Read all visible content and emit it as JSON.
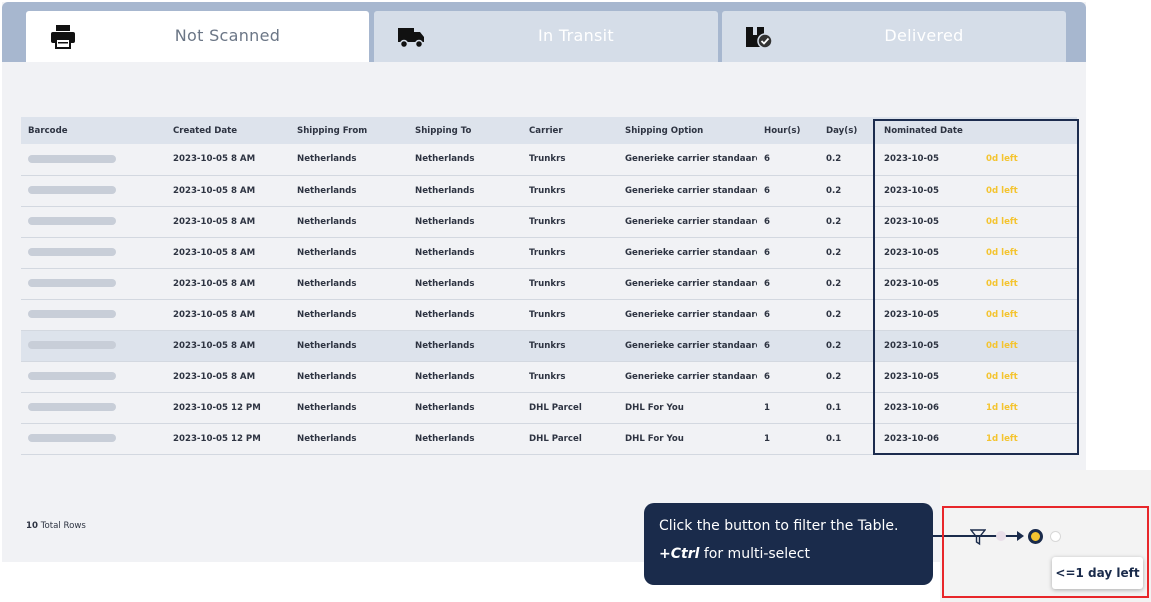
{
  "tabs": [
    {
      "label": "Not Scanned",
      "icon": "printer-icon",
      "active": true
    },
    {
      "label": "In Transit",
      "icon": "truck-icon",
      "active": false
    },
    {
      "label": "Delivered",
      "icon": "package-check-icon",
      "active": false
    }
  ],
  "table": {
    "columns": [
      "Barcode",
      "Created Date",
      "Shipping From",
      "Shipping To",
      "Carrier",
      "Shipping Option",
      "Hour(s)",
      "Day(s)",
      "Nominated Date"
    ],
    "rows": [
      {
        "created": "2023-10-05 8 AM",
        "from": "Netherlands",
        "to": "Netherlands",
        "carrier": "Trunkrs",
        "option": "Generieke carrier standaard",
        "hours": "6",
        "days": "0.2",
        "nominated": "2023-10-05",
        "left": "0d left"
      },
      {
        "created": "2023-10-05 8 AM",
        "from": "Netherlands",
        "to": "Netherlands",
        "carrier": "Trunkrs",
        "option": "Generieke carrier standaard",
        "hours": "6",
        "days": "0.2",
        "nominated": "2023-10-05",
        "left": "0d left"
      },
      {
        "created": "2023-10-05 8 AM",
        "from": "Netherlands",
        "to": "Netherlands",
        "carrier": "Trunkrs",
        "option": "Generieke carrier standaard",
        "hours": "6",
        "days": "0.2",
        "nominated": "2023-10-05",
        "left": "0d left"
      },
      {
        "created": "2023-10-05 8 AM",
        "from": "Netherlands",
        "to": "Netherlands",
        "carrier": "Trunkrs",
        "option": "Generieke carrier standaard",
        "hours": "6",
        "days": "0.2",
        "nominated": "2023-10-05",
        "left": "0d left"
      },
      {
        "created": "2023-10-05 8 AM",
        "from": "Netherlands",
        "to": "Netherlands",
        "carrier": "Trunkrs",
        "option": "Generieke carrier standaard",
        "hours": "6",
        "days": "0.2",
        "nominated": "2023-10-05",
        "left": "0d left"
      },
      {
        "created": "2023-10-05 8 AM",
        "from": "Netherlands",
        "to": "Netherlands",
        "carrier": "Trunkrs",
        "option": "Generieke carrier standaard",
        "hours": "6",
        "days": "0.2",
        "nominated": "2023-10-05",
        "left": "0d left"
      },
      {
        "created": "2023-10-05 8 AM",
        "from": "Netherlands",
        "to": "Netherlands",
        "carrier": "Trunkrs",
        "option": "Generieke carrier standaard",
        "hours": "6",
        "days": "0.2",
        "nominated": "2023-10-05",
        "left": "0d left",
        "highlighted": true
      },
      {
        "created": "2023-10-05 8 AM",
        "from": "Netherlands",
        "to": "Netherlands",
        "carrier": "Trunkrs",
        "option": "Generieke carrier standaard",
        "hours": "6",
        "days": "0.2",
        "nominated": "2023-10-05",
        "left": "0d left"
      },
      {
        "created": "2023-10-05 12 PM",
        "from": "Netherlands",
        "to": "Netherlands",
        "carrier": "DHL Parcel",
        "option": "DHL For You",
        "hours": "1",
        "days": "0.1",
        "nominated": "2023-10-06",
        "left": "1d left"
      },
      {
        "created": "2023-10-05 12 PM",
        "from": "Netherlands",
        "to": "Netherlands",
        "carrier": "DHL Parcel",
        "option": "DHL For You",
        "hours": "1",
        "days": "0.1",
        "nominated": "2023-10-06",
        "left": "1d left"
      }
    ]
  },
  "footer": {
    "total_count": "10",
    "total_label": "Total Rows"
  },
  "tooltip": {
    "line1": "Click the button to filter the Table.",
    "ctrl": "+Ctrl",
    "line2_rest": " for multi-select"
  },
  "filter": {
    "icon": "filter-icon",
    "active_badge": "<=1 day left"
  },
  "colors": {
    "accent_yellow": "#f4c430",
    "navy": "#1a2b4b",
    "tabstrip": "#a7b7cf",
    "highlight_frame": "#e8262a"
  }
}
